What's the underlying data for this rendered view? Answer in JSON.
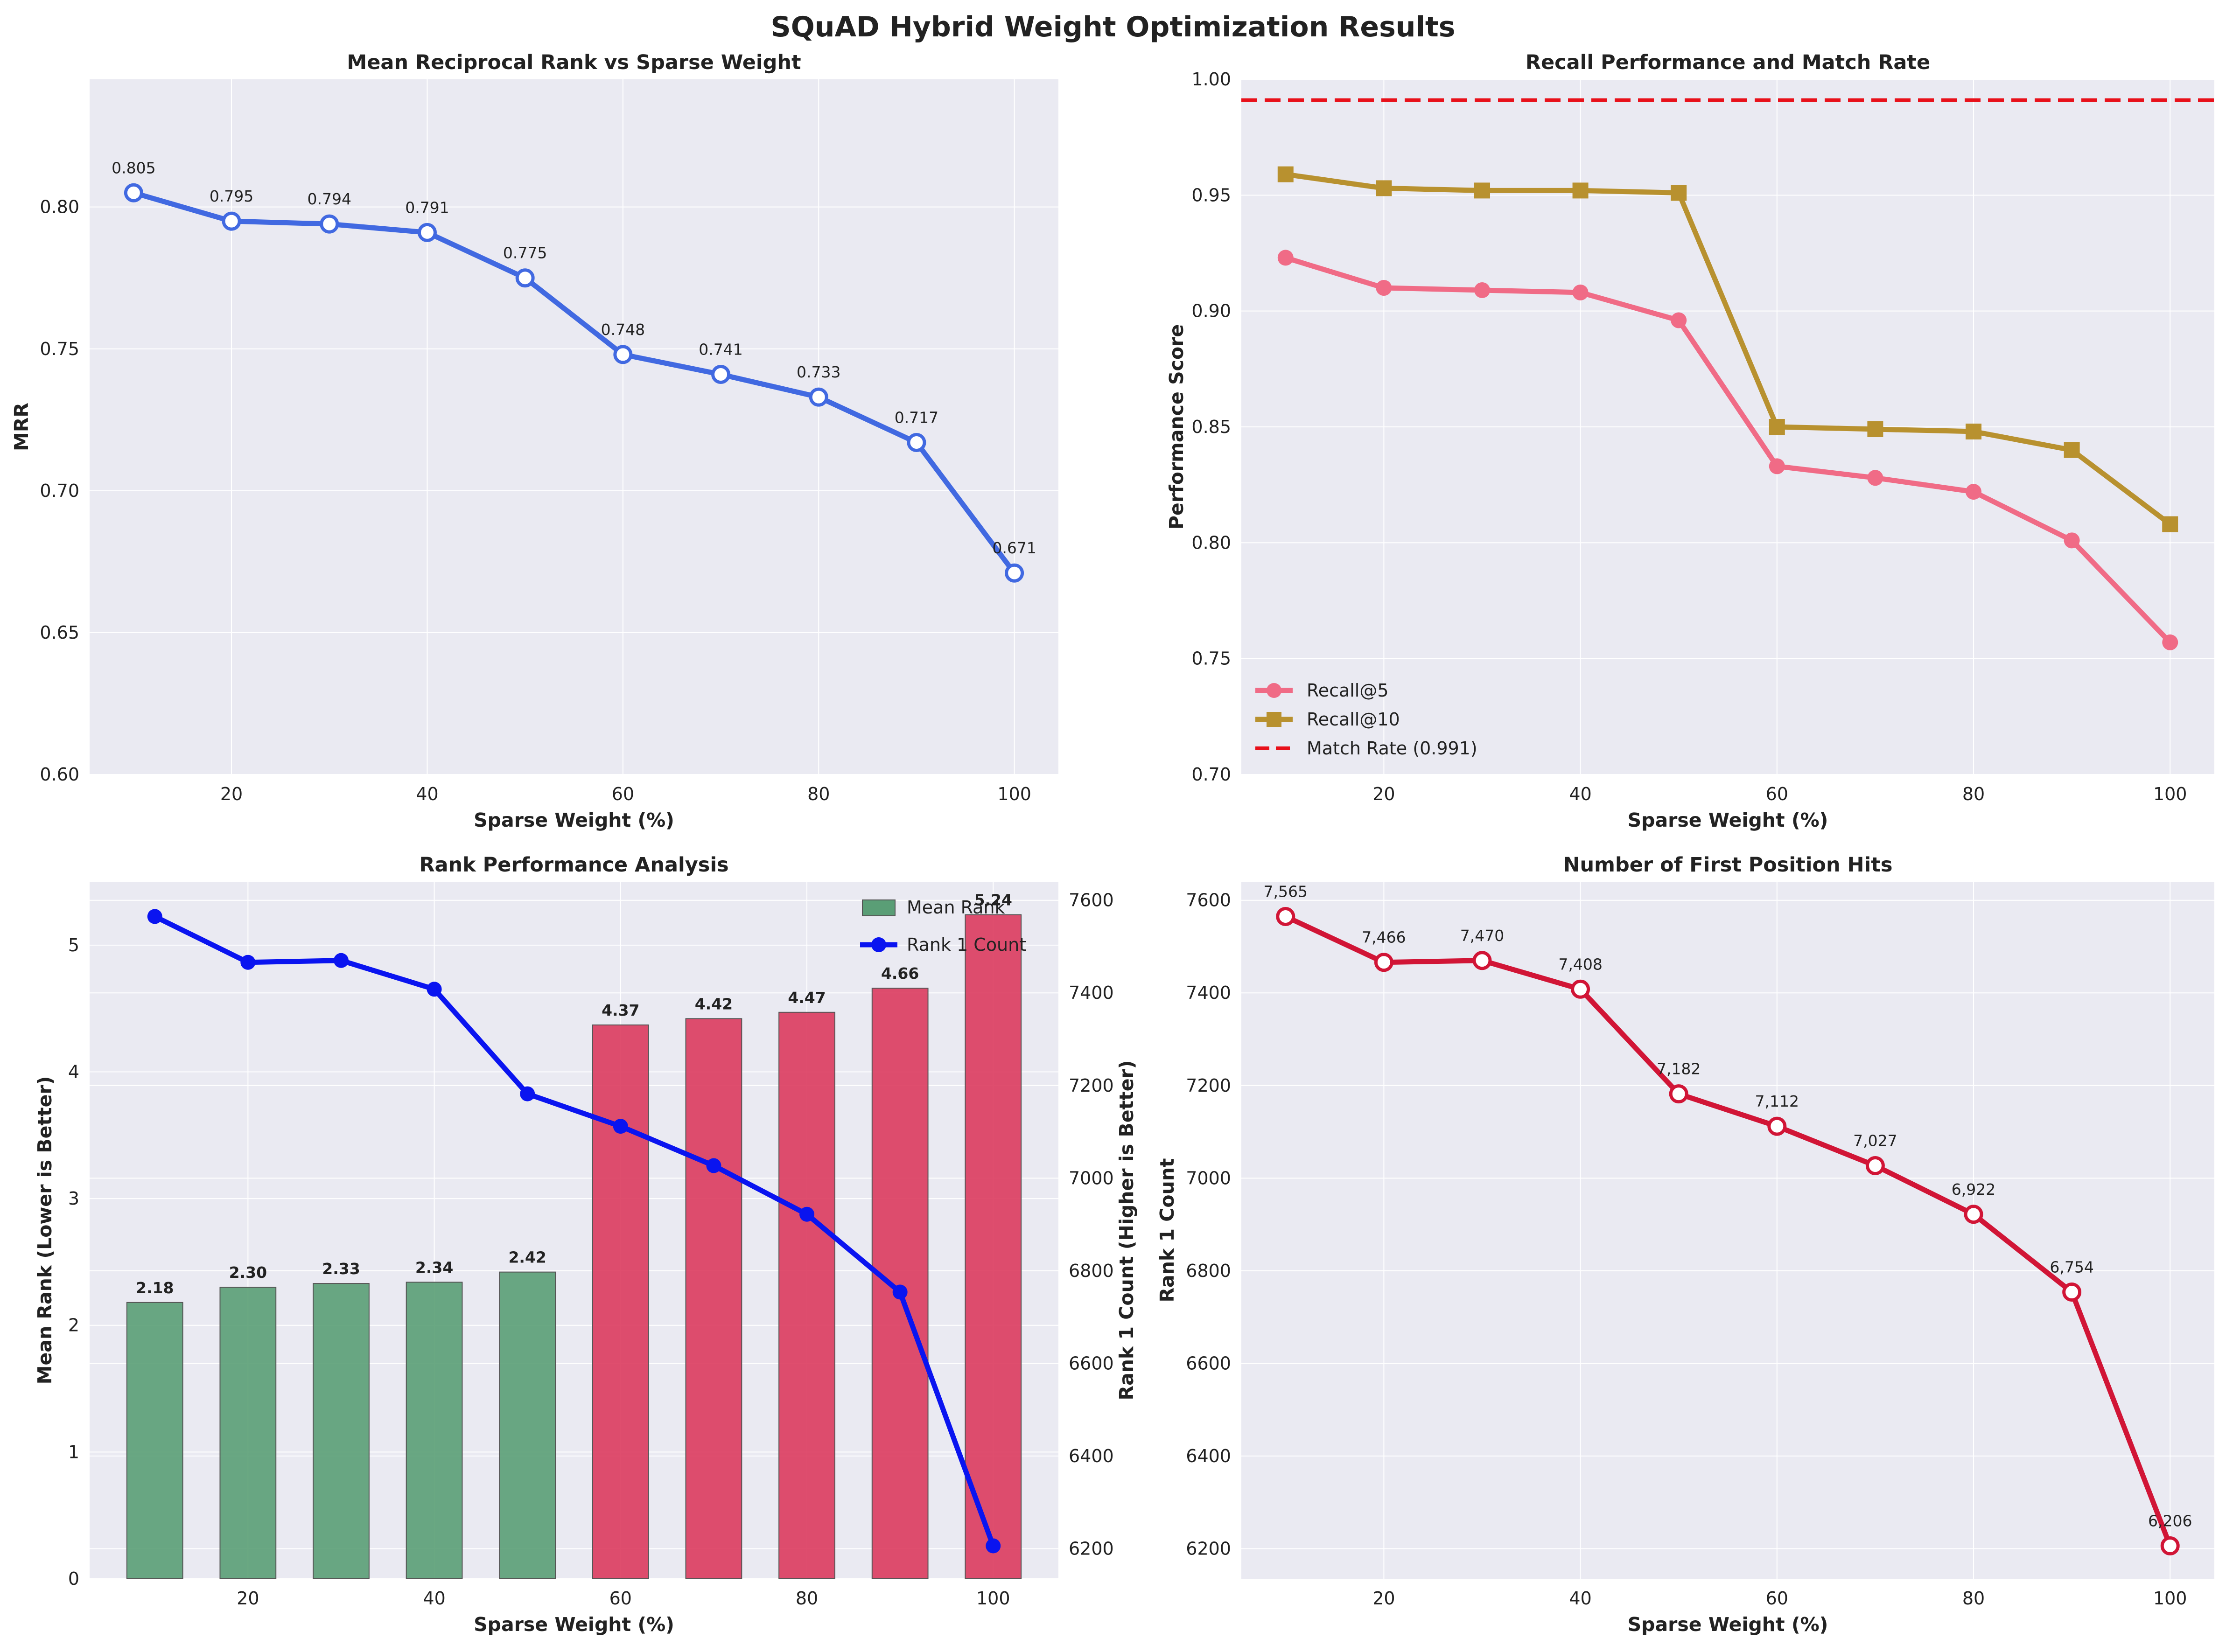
{
  "figure_title": "SQuAD Hybrid Weight Optimization Results",
  "colors": {
    "mrr_line": "#4169e1",
    "recall5": "#f06b86",
    "recall10": "#b8912f",
    "match_rate": "#e8101a",
    "bar_good": "#5a9e76",
    "bar_bad": "#dc3b5e",
    "rank1_line": "#0a14f0",
    "hits_line": "#d11536",
    "axes_bg": "#eaeaf2",
    "grid": "#ffffff",
    "right_axis": "#0000ff"
  },
  "chart_data": [
    {
      "id": "mrr",
      "type": "line",
      "title": "Mean Reciprocal Rank vs Sparse Weight",
      "xlabel": "Sparse Weight (%)",
      "ylabel": "MRR",
      "x": [
        10,
        20,
        30,
        40,
        50,
        60,
        70,
        80,
        90,
        100
      ],
      "values": [
        0.805,
        0.795,
        0.794,
        0.791,
        0.775,
        0.748,
        0.741,
        0.733,
        0.717,
        0.671
      ],
      "labels": [
        "0.805",
        "0.795",
        "0.794",
        "0.791",
        "0.775",
        "0.748",
        "0.741",
        "0.733",
        "0.717",
        "0.671"
      ],
      "xlim": [
        5.5,
        104.5
      ],
      "ylim": [
        0.6,
        0.845
      ],
      "xticks": [
        20,
        40,
        60,
        80,
        100
      ],
      "xtick_labels": [
        "20",
        "40",
        "60",
        "80",
        "100"
      ],
      "yticks": [
        0.6,
        0.65,
        0.7,
        0.75,
        0.8
      ],
      "ytick_labels": [
        "0.60",
        "0.65",
        "0.70",
        "0.75",
        "0.80"
      ],
      "grid": true
    },
    {
      "id": "recall",
      "type": "line",
      "title": "Recall Performance and Match Rate",
      "xlabel": "Sparse Weight (%)",
      "ylabel": "Performance Score",
      "x": [
        10,
        20,
        30,
        40,
        50,
        60,
        70,
        80,
        90,
        100
      ],
      "series": [
        {
          "name": "Recall@5",
          "values": [
            0.923,
            0.91,
            0.909,
            0.908,
            0.896,
            0.833,
            0.828,
            0.822,
            0.801,
            0.757
          ]
        },
        {
          "name": "Recall@10",
          "values": [
            0.959,
            0.953,
            0.952,
            0.952,
            0.951,
            0.85,
            0.849,
            0.848,
            0.84,
            0.808
          ]
        }
      ],
      "hline": {
        "name": "Match Rate (0.991)",
        "value": 0.991
      },
      "legend": [
        "Recall@5",
        "Recall@10",
        "Match Rate (0.991)"
      ],
      "legend_position": "lower-left",
      "xlim": [
        5.5,
        104.5
      ],
      "ylim": [
        0.7,
        1.0
      ],
      "xticks": [
        20,
        40,
        60,
        80,
        100
      ],
      "xtick_labels": [
        "20",
        "40",
        "60",
        "80",
        "100"
      ],
      "yticks": [
        0.7,
        0.75,
        0.8,
        0.85,
        0.9,
        0.95,
        1.0
      ],
      "ytick_labels": [
        "0.70",
        "0.75",
        "0.80",
        "0.85",
        "0.90",
        "0.95",
        "1.00"
      ],
      "grid": true
    },
    {
      "id": "rank",
      "type": "bar",
      "title": "Rank Performance Analysis",
      "xlabel": "Sparse Weight (%)",
      "ylabel": "Mean Rank (Lower is Better)",
      "ylabel_right": "Rank 1 Count (Higher is Better)",
      "x": [
        10,
        20,
        30,
        40,
        50,
        60,
        70,
        80,
        90,
        100
      ],
      "mean_rank": [
        2.18,
        2.3,
        2.33,
        2.34,
        2.42,
        4.37,
        4.42,
        4.47,
        4.66,
        5.24
      ],
      "mean_rank_labels": [
        "2.18",
        "2.30",
        "2.33",
        "2.34",
        "2.42",
        "4.37",
        "4.42",
        "4.47",
        "4.66",
        "5.24"
      ],
      "rank1_count": [
        7565,
        7466,
        7470,
        7408,
        7182,
        7112,
        7027,
        6922,
        6754,
        6206
      ],
      "legend": [
        "Mean Rank",
        "Rank 1 Count"
      ],
      "legend_position": "top-right",
      "xlim": [
        3,
        107
      ],
      "ylim": [
        0,
        5.5
      ],
      "ylim_right": [
        6135,
        7640
      ],
      "xticks": [
        20,
        40,
        60,
        80,
        100
      ],
      "xtick_labels": [
        "20",
        "40",
        "60",
        "80",
        "100"
      ],
      "yticks": [
        0,
        1,
        2,
        3,
        4,
        5
      ],
      "ytick_labels": [
        "0",
        "1",
        "2",
        "3",
        "4",
        "5"
      ],
      "yticks_right": [
        6200,
        6400,
        6600,
        6800,
        7000,
        7200,
        7400,
        7600
      ],
      "ytick_labels_right": [
        "6200",
        "6400",
        "6600",
        "6800",
        "7000",
        "7200",
        "7400",
        "7600"
      ],
      "grid": true
    },
    {
      "id": "hits",
      "type": "line",
      "title": "Number of First Position Hits",
      "xlabel": "Sparse Weight (%)",
      "ylabel": "Rank 1 Count",
      "x": [
        10,
        20,
        30,
        40,
        50,
        60,
        70,
        80,
        90,
        100
      ],
      "values": [
        7565,
        7466,
        7470,
        7408,
        7182,
        7112,
        7027,
        6922,
        6754,
        6206
      ],
      "labels": [
        "7,565",
        "7,466",
        "7,470",
        "7,408",
        "7,182",
        "7,112",
        "7,027",
        "6,922",
        "6,754",
        "6,206"
      ],
      "xlim": [
        5.5,
        104.5
      ],
      "ylim": [
        6135,
        7640
      ],
      "xticks": [
        20,
        40,
        60,
        80,
        100
      ],
      "xtick_labels": [
        "20",
        "40",
        "60",
        "80",
        "100"
      ],
      "yticks": [
        6200,
        6400,
        6600,
        6800,
        7000,
        7200,
        7400,
        7600
      ],
      "ytick_labels": [
        "6200",
        "6400",
        "6600",
        "6800",
        "7000",
        "7200",
        "7400",
        "7600"
      ],
      "grid": true
    }
  ]
}
